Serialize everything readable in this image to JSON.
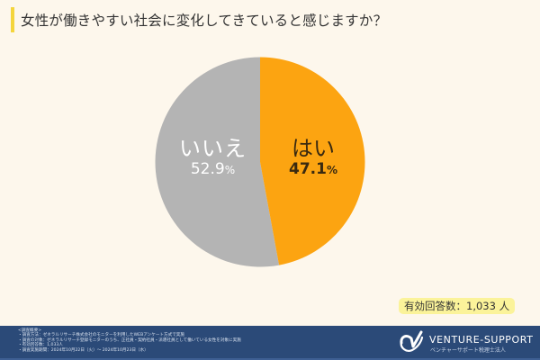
{
  "header": {
    "title": "女性が働きやすい社会に変化してきていると感じますか？",
    "accent_color": "#f4d53c"
  },
  "chart_data": {
    "type": "pie",
    "title": "女性が働きやすい社会に変化してきていると感じますか？",
    "categories": [
      "はい",
      "いいえ"
    ],
    "values": [
      47.1,
      52.9
    ],
    "unit": "%",
    "colors": [
      "#fca411",
      "#b4b4b4"
    ],
    "start_angle": "12 o'clock, clockwise",
    "labels": [
      {
        "name": "はい",
        "value": "47.1",
        "pct_sign": "%"
      },
      {
        "name": "いいえ",
        "value": "52.9",
        "pct_sign": "%"
      }
    ],
    "legend": "none (labels inside slices)"
  },
  "badge": {
    "text": "有効回答数：1,033 人"
  },
  "footer": {
    "survey_lines": [
      "<調査概要>",
      "・調査方法：ゼネラルリサーチ株式会社のモニターを利用したWEBアンケート方式で実施",
      "・調査の対象：ゼネラルリサーチ登録モニターのうち、正社員・契約社員・派遣社員として働いている女性を対象に実施",
      "・有効回答数：1,033人",
      "・調査実施期間：2024年10月22日（火）〜 2024年10月23日（水）"
    ],
    "brand_name": "VENTURE-SUPPORT",
    "brand_sub": "ベンチャーサポート税理士法人",
    "background_color": "#2b4a78"
  }
}
